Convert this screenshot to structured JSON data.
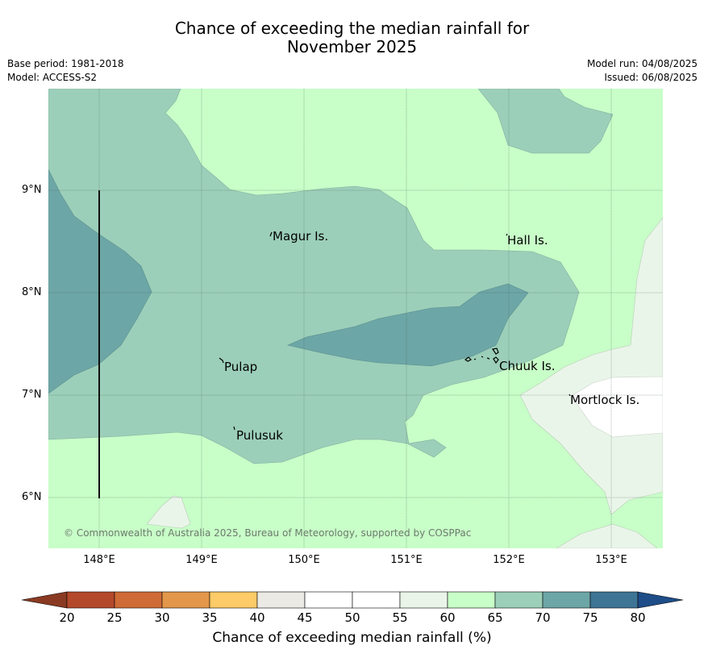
{
  "title_line1": "Chance of exceeding the median rainfall for",
  "title_line2": "November 2025",
  "base_period": "Base period: 1981-2018",
  "model": "Model: ACCESS-S2",
  "model_run": "Model run: 04/08/2025",
  "issued": "Issued: 06/08/2025",
  "copyright": "© Commonwealth of Australia 2025, Bureau of Meteorology, supported by COSPPac",
  "lat_labels": [
    "9°N",
    "8°N",
    "7°N",
    "6°N"
  ],
  "lon_labels": [
    "148°E",
    "149°E",
    "150°E",
    "151°E",
    "152°E",
    "153°E"
  ],
  "places": {
    "magur": "Magur Is.",
    "hall": "Hall Is.",
    "pulap": "Pulap",
    "chuuk": "Chuuk Is.",
    "mortlock": "Mortlock Is.",
    "pulusuk": "Pulusuk"
  },
  "legend": {
    "title": "Chance of exceeding median rainfall (%)",
    "ticks": [
      "20",
      "25",
      "30",
      "35",
      "40",
      "45",
      "50",
      "55",
      "60",
      "65",
      "70",
      "75",
      "80"
    ],
    "colors": [
      "#b3492a",
      "#cf6b36",
      "#e3974a",
      "#fdcb67",
      "#ebeae5",
      "#ffffff",
      "#ffffff",
      "#eaf5e9",
      "#c8fec8",
      "#9ccfb9",
      "#6da6a6",
      "#3e7595"
    ],
    "low_extend_color": "#8a3a22",
    "high_extend_color": "#1e4d88"
  }
}
